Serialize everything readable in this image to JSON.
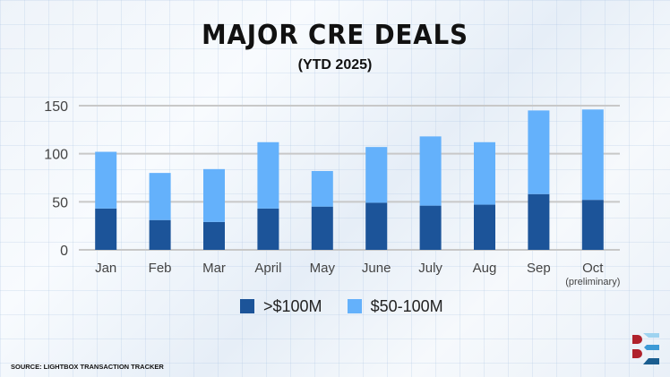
{
  "title": "MAJOR CRE DEALS",
  "subtitle": "(YTD 2025)",
  "source": "SOURCE: LIGHTBOX TRANSACTION TRACKER",
  "logo_text": "LightBox",
  "chart_data": {
    "type": "bar",
    "stacked": true,
    "title": "MAJOR CRE DEALS",
    "subtitle": "(YTD 2025)",
    "categories": [
      "Jan",
      "Feb",
      "Mar",
      "April",
      "May",
      "June",
      "July",
      "Aug",
      "Sep",
      "Oct"
    ],
    "category_notes": {
      "Oct": "(preliminary)"
    },
    "series": [
      {
        "name": ">$100M",
        "color": "#1c5499",
        "values": [
          43,
          31,
          29,
          43,
          45,
          49,
          46,
          47,
          58,
          52
        ]
      },
      {
        "name": "$50-100M",
        "color": "#64b1fb",
        "values": [
          59,
          49,
          55,
          69,
          37,
          58,
          72,
          65,
          87,
          94
        ]
      }
    ],
    "ylim": [
      0,
      150
    ],
    "yticks": [
      0,
      50,
      100,
      150
    ],
    "grid": true,
    "legend": "bottom"
  }
}
